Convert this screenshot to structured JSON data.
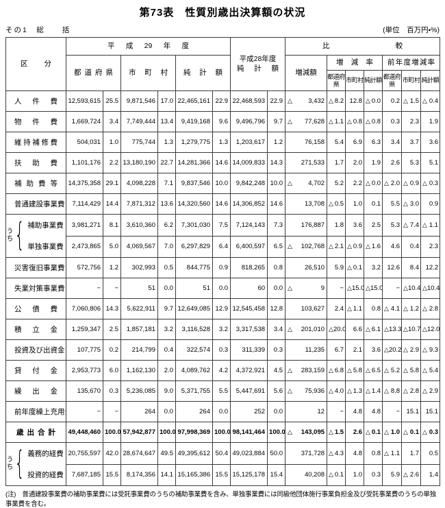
{
  "title": "第73表　性質別歳出決算額の状況",
  "subtitle_left": "その1　総　　括",
  "unit_note": "(単位　百万円・%)",
  "header": {
    "kubun": "区分",
    "h29": "平成29年度",
    "todofuken": "都道府県",
    "shichoson": "市町村",
    "junkeigaku": "純計額",
    "h28_line1": "平成28年度",
    "h28_line2": "純計額",
    "hikaku": "比較",
    "zogen_gaku": "増減額",
    "zogen_ritsu": "増減率",
    "zennendo_ritsu": "前年度増減率",
    "sub_todofuken": "都道府県",
    "sub_shichoson": "市町村",
    "sub_junkeigaku": "純計額"
  },
  "uchi_label": "うち",
  "note": "(注)　普通建設事業費の補助事業費には受託事業費のうちの補助事業費を含み、単独事業費には同級他団体施行事業負担金及び受託事業費のうちの単独事業費を含む。",
  "rows": [
    {
      "label": "人件費",
      "cells": [
        "12,593,615",
        "25.5",
        "9,871,546",
        "17.0",
        "22,465,161",
        "22.9",
        "22,468,593",
        "22.9",
        "△3,432",
        "△8.2",
        "12.8",
        "△0.0",
        "0.2",
        "△1.5",
        "△0.4"
      ]
    },
    {
      "label": "物件費",
      "cells": [
        "1,669,724",
        "3.4",
        "7,749,444",
        "13.4",
        "9,419,168",
        "9.6",
        "9,496,796",
        "9.7",
        "△77,628",
        "△1.1",
        "△0.8",
        "△0.8",
        "0.3",
        "2.3",
        "1.9"
      ]
    },
    {
      "label": "維持補修費",
      "cells": [
        "504,031",
        "1.0",
        "775,744",
        "1.3",
        "1,279,775",
        "1.3",
        "1,203,617",
        "1.2",
        "76,158",
        "5.4",
        "6.9",
        "6.3",
        "3.4",
        "3.7",
        "3.6"
      ]
    },
    {
      "label": "扶助費",
      "cells": [
        "1,101,176",
        "2.2",
        "13,180,190",
        "22.7",
        "14,281,366",
        "14.6",
        "14,009,833",
        "14.3",
        "271,533",
        "1.7",
        "2.0",
        "1.9",
        "2.6",
        "5.3",
        "5.1"
      ]
    },
    {
      "label": "補助費等",
      "cells": [
        "14,375,358",
        "29.1",
        "4,098,228",
        "7.1",
        "9,837,546",
        "10.0",
        "9,842,248",
        "10.0",
        "△4,702",
        "5.2",
        "2.2",
        "△0.0",
        "△2.0",
        "△0.9",
        "△0.3"
      ]
    },
    {
      "label": "普通建設事業費",
      "cells": [
        "7,114,429",
        "14.4",
        "7,871,312",
        "13.6",
        "14,320,560",
        "14.6",
        "14,306,852",
        "14.6",
        "13,708",
        "△0.5",
        "1.0",
        "0.1",
        "5.5",
        "△3.0",
        "0.9"
      ]
    },
    {
      "label": "補助事業費",
      "uchiStart": true,
      "cells": [
        "3,981,271",
        "8.1",
        "3,610,360",
        "6.2",
        "7,301,030",
        "7.5",
        "7,124,143",
        "7.3",
        "176,887",
        "1.8",
        "3.6",
        "2.5",
        "5.3",
        "△7.4",
        "△1.1"
      ]
    },
    {
      "label": "単独事業費",
      "uchiEnd": true,
      "cells": [
        "2,473,865",
        "5.0",
        "4,069,567",
        "7.0",
        "6,297,829",
        "6.4",
        "6,400,597",
        "6.5",
        "△102,768",
        "△2.1",
        "△0.9",
        "△1.6",
        "4.6",
        "0.4",
        "2.3"
      ]
    },
    {
      "label": "災害復旧事業費",
      "cells": [
        "572,756",
        "1.2",
        "302,993",
        "0.5",
        "844,775",
        "0.9",
        "818,265",
        "0.8",
        "26,510",
        "5.9",
        "△0.1",
        "3.2",
        "12.6",
        "8.4",
        "12.2"
      ]
    },
    {
      "label": "失業対策事業費",
      "cells": [
        "−",
        "−",
        "51",
        "0.0",
        "51",
        "0.0",
        "60",
        "0.0",
        "△9",
        "−",
        "△15.0",
        "△15.0",
        "−",
        "△10.4",
        "△10.4"
      ]
    },
    {
      "label": "公債費",
      "cells": [
        "7,060,806",
        "14.3",
        "5,622,911",
        "9.7",
        "12,649,085",
        "12.9",
        "12,545,458",
        "12.8",
        "103,627",
        "2.4",
        "△1.1",
        "0.8",
        "△4.1",
        "△1.2",
        "△2.8"
      ]
    },
    {
      "label": "積立金",
      "cells": [
        "1,259,347",
        "2.5",
        "1,857,181",
        "3.2",
        "3,116,528",
        "3.2",
        "3,317,538",
        "3.4",
        "△201,010",
        "△20.0",
        "6.6",
        "△6.1",
        "△13.3",
        "△10.7",
        "△12.0"
      ]
    },
    {
      "label": "投資及び出資金",
      "cells": [
        "107,775",
        "0.2",
        "214,799",
        "0.4",
        "322,574",
        "0.3",
        "311,339",
        "0.3",
        "11,235",
        "6.7",
        "2.1",
        "3.6",
        "△20.2",
        "△2.9",
        "△9.3"
      ]
    },
    {
      "label": "貸付金",
      "cells": [
        "2,953,773",
        "6.0",
        "1,162,130",
        "2.0",
        "4,089,762",
        "4.2",
        "4,372,921",
        "4.5",
        "△283,159",
        "△6.8",
        "△5.8",
        "△6.5",
        "△5.2",
        "△5.8",
        "△5.4"
      ]
    },
    {
      "label": "繰出金",
      "cells": [
        "135,670",
        "0.3",
        "5,236,085",
        "9.0",
        "5,371,755",
        "5.5",
        "5,447,691",
        "5.6",
        "△75,936",
        "△4.0",
        "△1.3",
        "△1.4",
        "△8.8",
        "△2.8",
        "△2.9"
      ]
    },
    {
      "label": "前年度繰上充用金",
      "cells": [
        "−",
        "−",
        "264",
        "0.0",
        "264",
        "0.0",
        "252",
        "0.0",
        "12",
        "−",
        "4.8",
        "4.8",
        "−",
        "15.1",
        "15.1"
      ]
    },
    {
      "label": "歳出合計",
      "total": true,
      "cells": [
        "49,448,460",
        "100.0",
        "57,942,877",
        "100.0",
        "97,998,369",
        "100.0",
        "98,141,464",
        "100.0",
        "△143,095",
        "△1.5",
        "2.6",
        "△0.1",
        "△1.0",
        "△0.1",
        "△0.3"
      ]
    },
    {
      "label": "義務的経費",
      "uchiStart": true,
      "cells": [
        "20,755,597",
        "42.0",
        "28,674,647",
        "49.5",
        "49,395,612",
        "50.4",
        "49,023,884",
        "50.0",
        "371,728",
        "△4.3",
        "4.8",
        "0.8",
        "△1.1",
        "1.7",
        "0.5"
      ]
    },
    {
      "label": "投資的経費",
      "uchiEnd": true,
      "cells": [
        "7,687,185",
        "15.5",
        "8,174,356",
        "14.1",
        "15,165,386",
        "15.5",
        "15,125,178",
        "15.4",
        "40,208",
        "△0.1",
        "1.0",
        "0.3",
        "5.9",
        "△2.6",
        "1.4"
      ]
    }
  ]
}
